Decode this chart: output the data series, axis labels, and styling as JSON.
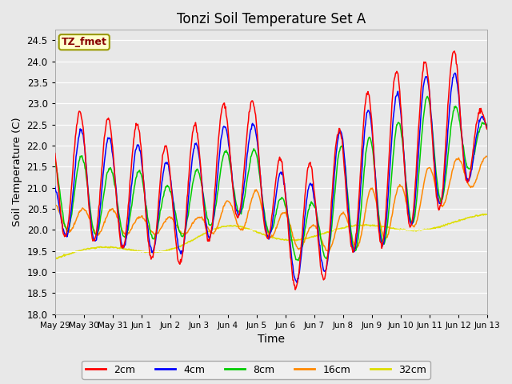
{
  "title": "Tonzi Soil Temperature Set A",
  "xlabel": "Time",
  "ylabel": "Soil Temperature (C)",
  "ylim": [
    18.0,
    24.75
  ],
  "yticks": [
    18.0,
    18.5,
    19.0,
    19.5,
    20.0,
    20.5,
    21.0,
    21.5,
    22.0,
    22.5,
    23.0,
    23.5,
    24.0,
    24.5
  ],
  "bg_color": "#e8e8e8",
  "line_colors": {
    "2cm": "#ff0000",
    "4cm": "#0000ff",
    "8cm": "#00cc00",
    "16cm": "#ff8800",
    "32cm": "#dddd00"
  },
  "legend_label": "TZ_fmet",
  "legend_bg": "#ffffcc",
  "legend_border": "#999900",
  "xtick_labels": [
    "May 29",
    "May 30",
    "May 31",
    "Jun 1",
    "Jun 2",
    "Jun 3",
    "Jun 4",
    "Jun 5",
    "Jun 6",
    "Jun 7",
    "Jun 8",
    "Jun 9",
    "Jun 10",
    "Jun 11",
    "Jun 12",
    "Jun 13"
  ]
}
